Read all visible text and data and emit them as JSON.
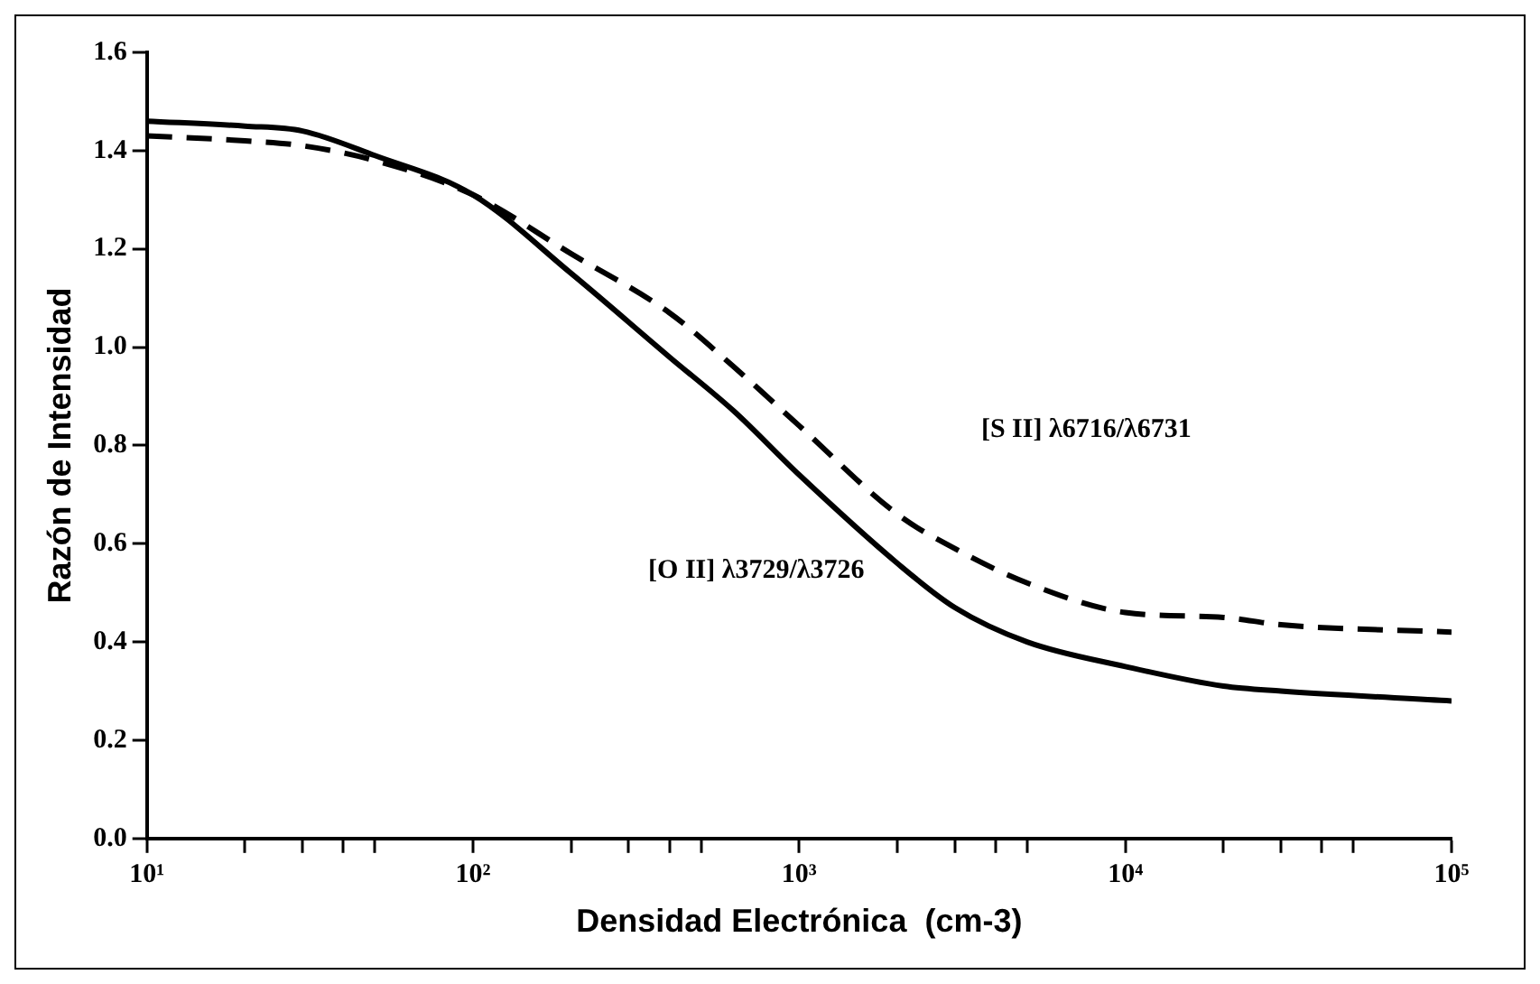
{
  "chart_data": {
    "type": "line",
    "xlabel": "Densidad Electrónica  (cm-3)",
    "ylabel": "Razón de Intensidad",
    "log": "x",
    "x": [
      10,
      20,
      30,
      50,
      100,
      200,
      400,
      630,
      1000,
      2000,
      3000,
      5000,
      10000,
      20000,
      30000,
      100000
    ],
    "series": [
      {
        "color": "#000000",
        "line_style": "solid",
        "values": [
          1.46,
          1.45,
          1.44,
          1.39,
          1.31,
          1.15,
          0.98,
          0.87,
          0.74,
          0.56,
          0.47,
          0.4,
          0.35,
          0.31,
          0.3,
          0.28
        ]
      },
      {
        "color": "#000000",
        "line_style": "dashed",
        "values": [
          1.43,
          1.42,
          1.41,
          1.38,
          1.31,
          1.19,
          1.07,
          0.96,
          0.84,
          0.66,
          0.59,
          0.52,
          0.46,
          0.45,
          0.435,
          0.42
        ]
      }
    ],
    "xlim": [
      10,
      100000
    ],
    "xticks": [
      {
        "value": 10,
        "label": "10¹"
      },
      {
        "value": 20,
        "label": null
      },
      {
        "value": 30,
        "label": null
      },
      {
        "value": 40,
        "label": null
      },
      {
        "value": 50,
        "label": null
      },
      {
        "value": 100,
        "label": "10²"
      },
      {
        "value": 200,
        "label": null
      },
      {
        "value": 300,
        "label": null
      },
      {
        "value": 400,
        "label": null
      },
      {
        "value": 500,
        "label": null
      },
      {
        "value": 1000,
        "label": "10³"
      },
      {
        "value": 2000,
        "label": null
      },
      {
        "value": 3000,
        "label": null
      },
      {
        "value": 4000,
        "label": null
      },
      {
        "value": 5000,
        "label": null
      },
      {
        "value": 10000,
        "label": "10⁴"
      },
      {
        "value": 20000,
        "label": null
      },
      {
        "value": 30000,
        "label": null
      },
      {
        "value": 40000,
        "label": null
      },
      {
        "value": 50000,
        "label": null
      },
      {
        "value": 100000,
        "label": "10⁵"
      }
    ],
    "ylim": [
      0,
      1.6
    ],
    "yticks": [
      {
        "value": 0,
        "label": "0.0"
      },
      {
        "value": 0.2,
        "label": "0.2"
      },
      {
        "value": 0.4,
        "label": "0.4"
      },
      {
        "value": 0.6,
        "label": "0.6"
      },
      {
        "value": 0.8,
        "label": "0.8"
      },
      {
        "value": 1,
        "label": "1.0"
      },
      {
        "value": 1.2,
        "label": "1.2"
      },
      {
        "value": 1.4,
        "label": "1.4"
      },
      {
        "value": 1.6,
        "label": "1.6"
      }
    ],
    "grid": false,
    "legend": false,
    "marker": "none",
    "annotations": [
      "[O II] λ3729/λ3726",
      "[S II] λ6716/λ6731"
    ]
  }
}
